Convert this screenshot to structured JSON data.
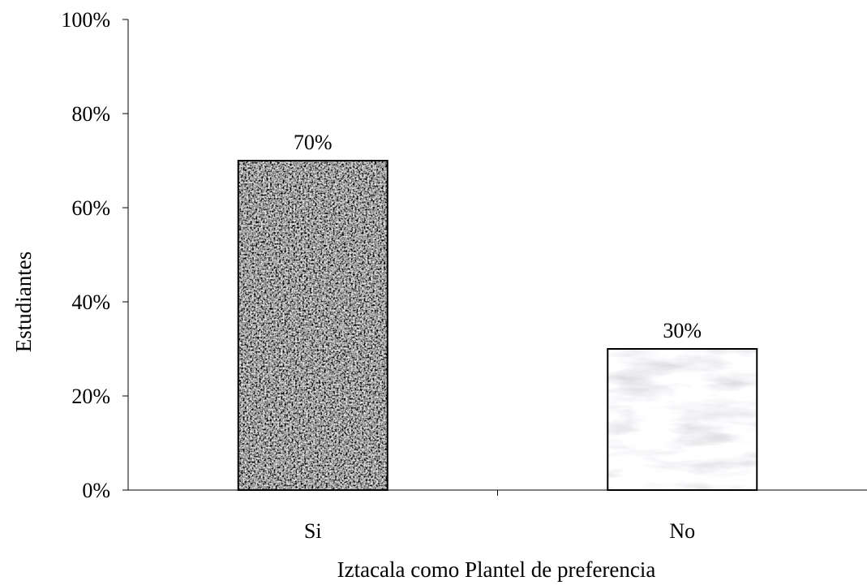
{
  "chart_data": {
    "type": "bar",
    "categories": [
      "Si",
      "No"
    ],
    "values": [
      70,
      30
    ],
    "data_labels": [
      "70%",
      "30%"
    ],
    "title": "",
    "xlabel": "Iztacala como Plantel de preferencia",
    "ylabel": "Estudiantes",
    "ylim": [
      0,
      100
    ],
    "yticks": [
      0,
      20,
      40,
      60,
      80,
      100
    ],
    "ytick_labels": [
      "0%",
      "20%",
      "40%",
      "60%",
      "80%",
      "100%"
    ],
    "grid": false,
    "legend": "none",
    "bar_styles": [
      "dark-granite-texture",
      "light-marble-texture"
    ]
  }
}
